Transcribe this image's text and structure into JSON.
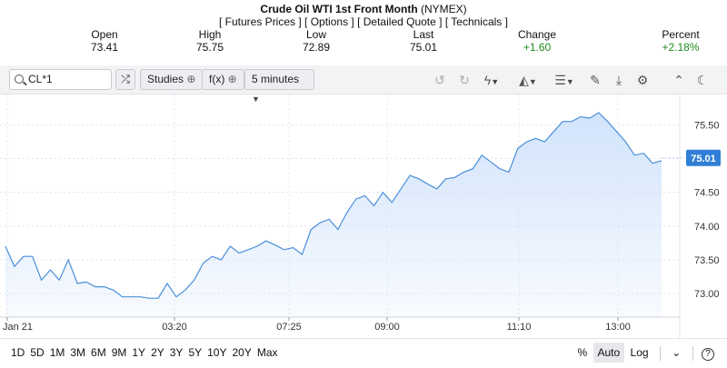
{
  "header": {
    "title": "Crude Oil WTI 1st Front Month",
    "exchange": "(NYMEX)",
    "links": [
      "[ Futures Prices ]",
      "[ Options ]",
      "[ Detailed Quote ]",
      "[ Technicals ]"
    ]
  },
  "quote": {
    "open_label": "Open",
    "open": "73.41",
    "high_label": "High",
    "high": "75.75",
    "low_label": "Low",
    "low": "72.89",
    "last_label": "Last",
    "last": "75.01",
    "change_label": "Change",
    "change": "+1.60",
    "percent_label": "Percent",
    "percent": "+2.18%"
  },
  "toolbar": {
    "symbol": "CL*1",
    "studies_label": "Studies",
    "fx_label": "f(x)",
    "interval_label": "5 minutes",
    "icons": [
      "undo-icon",
      "redo-icon",
      "lightning-icon",
      "chart-type-icon",
      "layout-icon",
      "pencil-icon",
      "download-icon",
      "settings-icon",
      "collapse-icon",
      "dark-mode-icon"
    ]
  },
  "chart_data": {
    "type": "area",
    "x_ticks": [
      "Jan 21",
      "03:20",
      "07:25",
      "09:00",
      "11:10",
      "13:00"
    ],
    "y_ticks": [
      "75.50",
      "75.00",
      "74.50",
      "74.00",
      "73.50",
      "73.00"
    ],
    "ylim": [
      72.65,
      75.95
    ],
    "last_price_label": "75.01",
    "line_color": "#4a8fd8",
    "fill_color": "#cfe2fb",
    "values": [
      73.7,
      73.4,
      73.55,
      73.55,
      73.2,
      73.35,
      73.2,
      73.5,
      73.15,
      73.17,
      73.1,
      73.1,
      73.05,
      72.95,
      72.95,
      72.95,
      72.93,
      72.93,
      73.15,
      72.95,
      73.05,
      73.2,
      73.45,
      73.55,
      73.5,
      73.7,
      73.6,
      73.65,
      73.7,
      73.78,
      73.72,
      73.65,
      73.68,
      73.58,
      73.95,
      74.05,
      74.1,
      73.95,
      74.2,
      74.4,
      74.45,
      74.3,
      74.5,
      74.35,
      74.55,
      74.75,
      74.7,
      74.62,
      74.55,
      74.7,
      74.72,
      74.8,
      74.85,
      75.05,
      74.95,
      74.85,
      74.8,
      75.15,
      75.25,
      75.3,
      75.25,
      75.4,
      75.55,
      75.55,
      75.62,
      75.6,
      75.68,
      75.55,
      75.4,
      75.25,
      75.05,
      75.08,
      74.93,
      74.97
    ]
  },
  "bottom": {
    "ranges": [
      "1D",
      "5D",
      "1M",
      "3M",
      "6M",
      "9M",
      "1Y",
      "2Y",
      "3Y",
      "5Y",
      "10Y",
      "20Y",
      "Max"
    ],
    "percent_label": "%",
    "auto_label": "Auto",
    "log_label": "Log",
    "help_label": "?"
  }
}
